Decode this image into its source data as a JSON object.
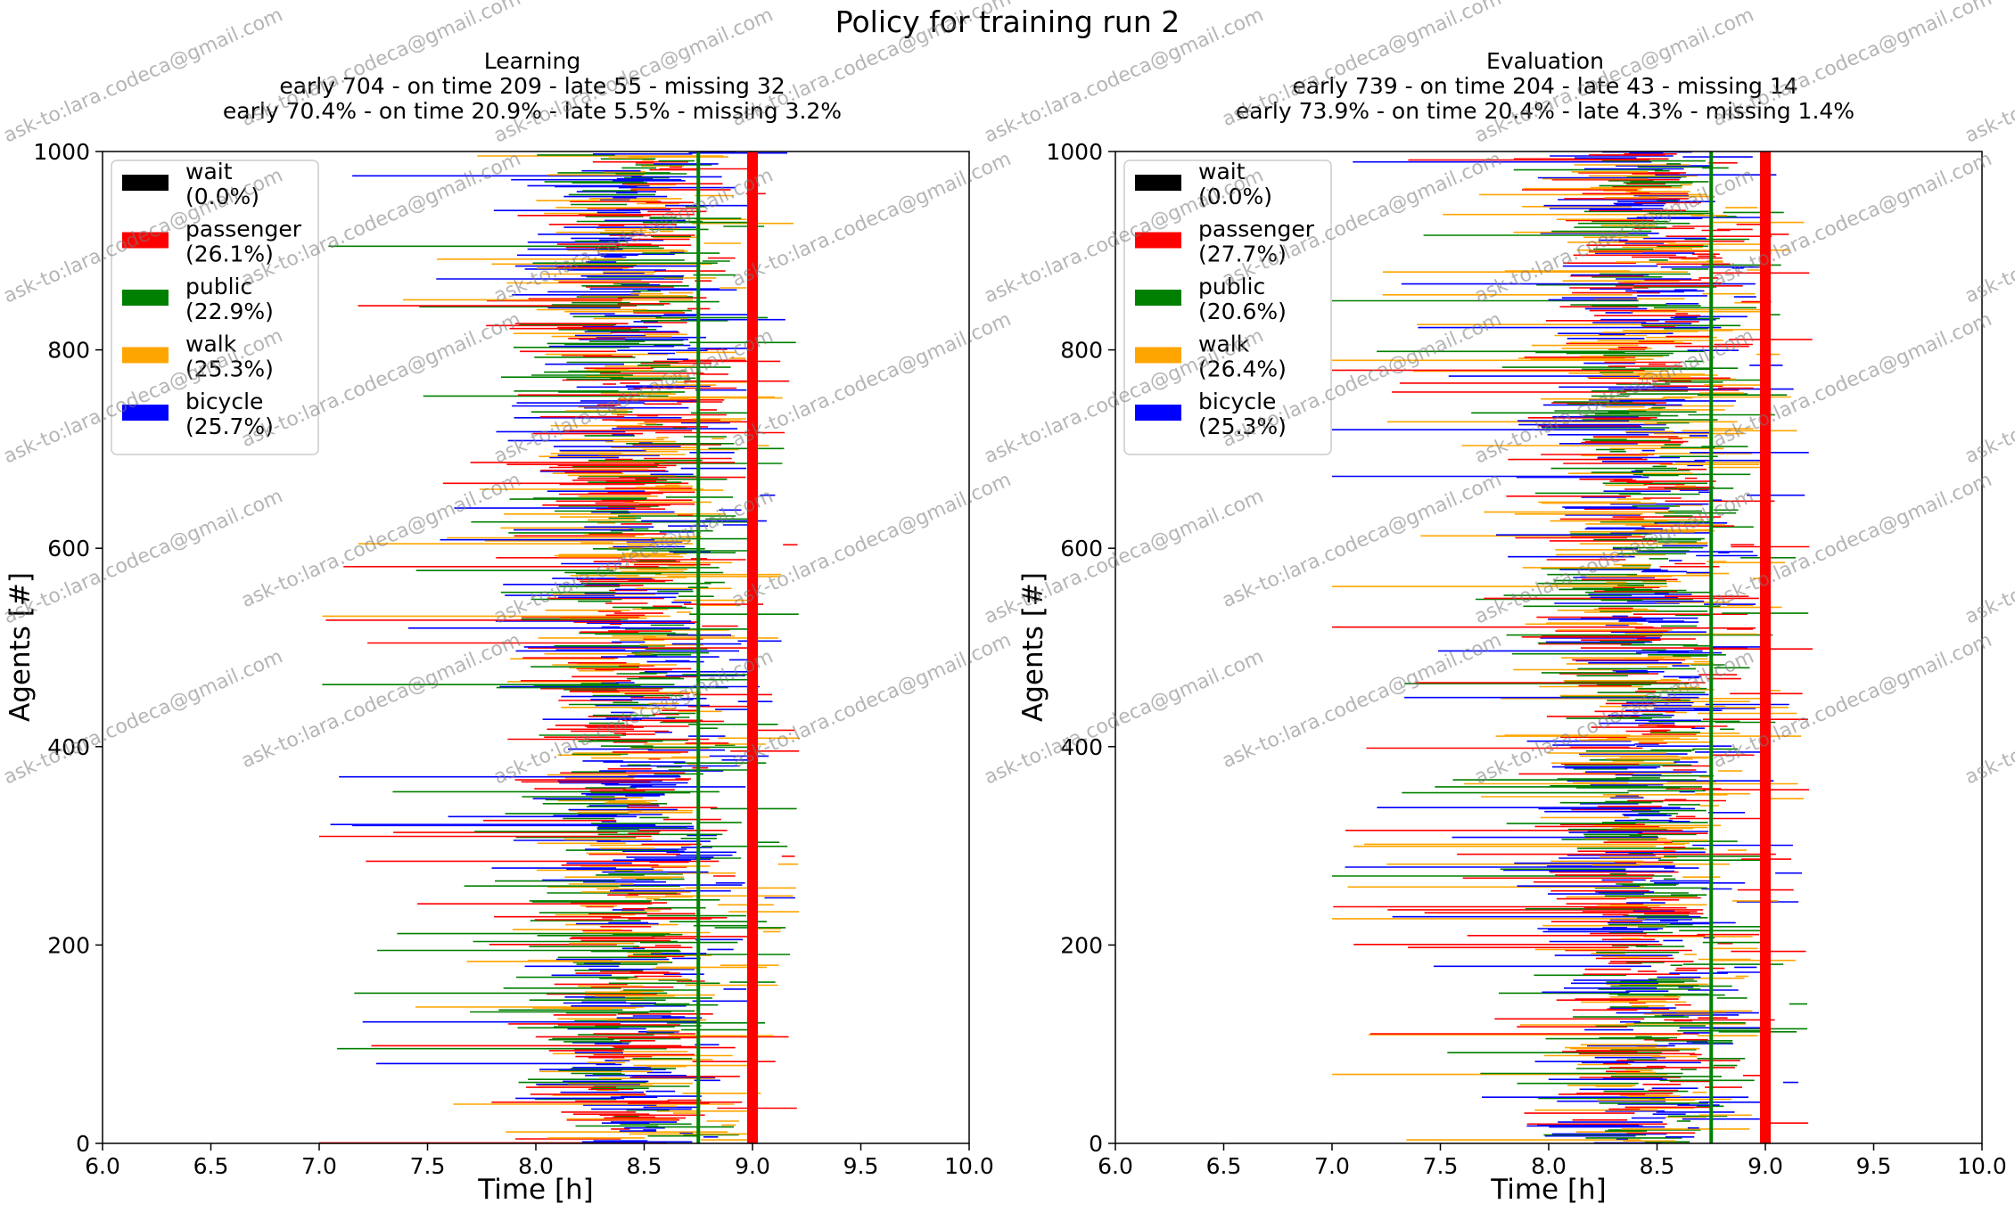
{
  "figure": {
    "suptitle": "Policy for training run 2",
    "watermark": "ask-to:lara.codeca@gmail.com"
  },
  "colors": {
    "wait": "#000000",
    "passenger": "#ff0000",
    "public": "#008000",
    "walk": "#ffa500",
    "bicycle": "#0000ff",
    "target_line": "#ff0000",
    "ontime_line": "#008000"
  },
  "chart_data": [
    {
      "type": "bar",
      "subtype": "horizontal-interval (gantt)",
      "panel": "learning",
      "title_lines": [
        "Learning",
        "early 704 - on time 209 - late 55 - missing 32",
        "early 70.4% - on time 20.9% - late 5.5% - missing 3.2%"
      ],
      "xlabel": "Time [h]",
      "ylabel": "Agents [#]",
      "xlim": [
        6.0,
        10.0
      ],
      "ylim": [
        0,
        1000
      ],
      "xticks": [
        "6.0",
        "6.5",
        "7.0",
        "7.5",
        "8.0",
        "8.5",
        "9.0",
        "9.5",
        "10.0"
      ],
      "yticks": [
        "0",
        "200",
        "400",
        "600",
        "800",
        "1000"
      ],
      "vlines": [
        {
          "x": 8.75,
          "color": "green"
        },
        {
          "x": 9.0,
          "color": "red"
        }
      ],
      "legend_location": "upper-left",
      "series": [
        {
          "name": "wait",
          "label": "(0.0%)",
          "share": 0.0
        },
        {
          "name": "passenger",
          "label": "(26.1%)",
          "share": 26.1
        },
        {
          "name": "public",
          "label": "(22.9%)",
          "share": 22.9
        },
        {
          "name": "walk",
          "label": "(25.3%)",
          "share": 25.3
        },
        {
          "name": "bicycle",
          "label": "(25.7%)",
          "share": 25.7
        }
      ],
      "counts": {
        "early": 704,
        "on_time": 209,
        "late": 55,
        "missing": 32
      }
    },
    {
      "type": "bar",
      "subtype": "horizontal-interval (gantt)",
      "panel": "evaluation",
      "title_lines": [
        "Evaluation",
        "early 739 - on time 204 - late 43 - missing 14",
        "early 73.9% - on time 20.4% - late 4.3% - missing 1.4%"
      ],
      "xlabel": "Time [h]",
      "ylabel": "Agents [#]",
      "xlim": [
        6.0,
        10.0
      ],
      "ylim": [
        0,
        1000
      ],
      "xticks": [
        "6.0",
        "6.5",
        "7.0",
        "7.5",
        "8.0",
        "8.5",
        "9.0",
        "9.5",
        "10.0"
      ],
      "yticks": [
        "0",
        "200",
        "400",
        "600",
        "800",
        "1000"
      ],
      "vlines": [
        {
          "x": 8.75,
          "color": "green"
        },
        {
          "x": 9.0,
          "color": "red"
        }
      ],
      "legend_location": "upper-left",
      "series": [
        {
          "name": "wait",
          "label": "(0.0%)",
          "share": 0.0
        },
        {
          "name": "passenger",
          "label": "(27.7%)",
          "share": 27.7
        },
        {
          "name": "public",
          "label": "(20.6%)",
          "share": 20.6
        },
        {
          "name": "walk",
          "label": "(26.4%)",
          "share": 26.4
        },
        {
          "name": "bicycle",
          "label": "(25.3%)",
          "share": 25.3
        }
      ],
      "counts": {
        "early": 739,
        "on_time": 204,
        "late": 43,
        "missing": 14
      }
    }
  ]
}
